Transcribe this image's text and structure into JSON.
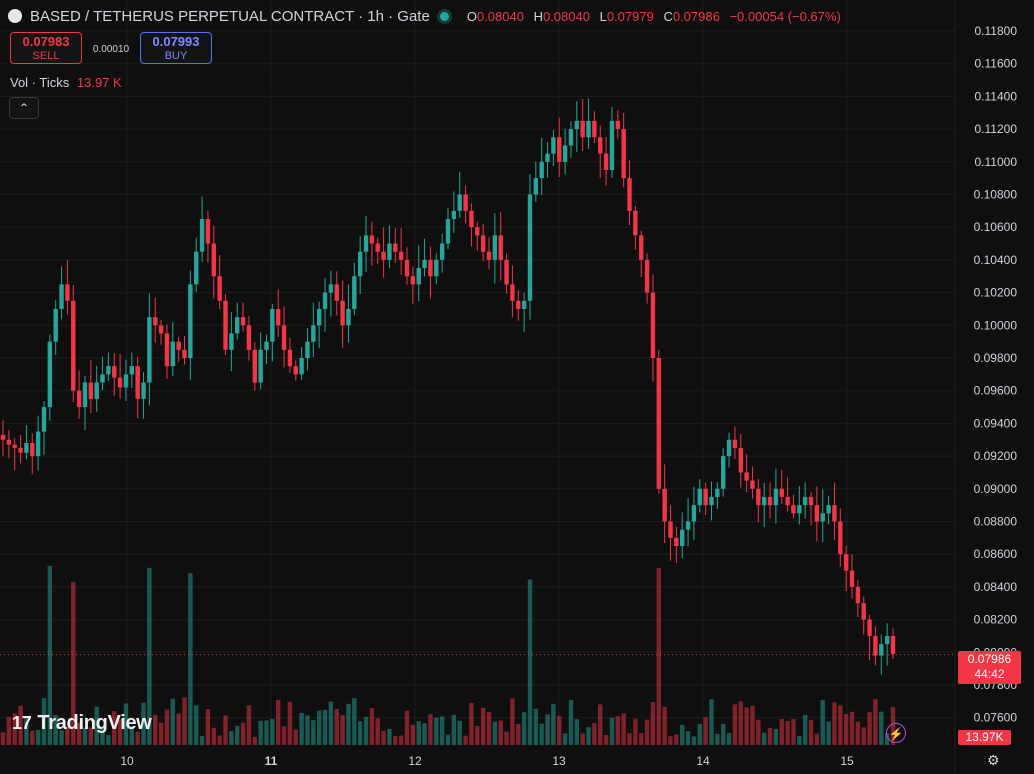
{
  "header": {
    "symbol": "BASED / TETHERUS PERPETUAL CONTRACT · 1h · Gate",
    "o_label": "O",
    "o": "0.08040",
    "h_label": "H",
    "h": "0.08040",
    "l_label": "L",
    "l": "0.07979",
    "c_label": "C",
    "c": "0.07986",
    "change": "−0.00054 (−0.67%)"
  },
  "trade": {
    "sell_price": "0.07983",
    "sell_label": "SELL",
    "spread": "0.00010",
    "buy_price": "0.07993",
    "buy_label": "BUY"
  },
  "volume_legend": {
    "label": "Vol · Ticks",
    "value": "13.97 K"
  },
  "collapse_glyph": "⌃",
  "branding": {
    "name": "TradingView",
    "mark": "17"
  },
  "last_price": {
    "price": "0.07986",
    "countdown": "44:42"
  },
  "volume_tag": "13.97K",
  "colors": {
    "up": "#26a69a",
    "down": "#f23645",
    "background": "#0f0f0f",
    "grid": "#1c1c1c",
    "text": "#d1d4dc"
  },
  "icons": {
    "bolt": "lightning-icon",
    "settings": "gear-icon",
    "status": "live-status-dot"
  },
  "chart_data": {
    "type": "candlestick",
    "title": "BASED / TETHERUS PERPETUAL CONTRACT · 1h · Gate",
    "interval": "1h",
    "y_ticks": [
      "0.11800",
      "0.11600",
      "0.11400",
      "0.11200",
      "0.11000",
      "0.10800",
      "0.10600",
      "0.10400",
      "0.10200",
      "0.10000",
      "0.09800",
      "0.09600",
      "0.09400",
      "0.09200",
      "0.09000",
      "0.08800",
      "0.08600",
      "0.08400",
      "0.08200",
      "0.08000",
      "0.07800",
      "0.07600"
    ],
    "ylim": [
      0.0755,
      0.1185
    ],
    "x_tick_labels": [
      "10",
      "11",
      "12",
      "13",
      "14",
      "15"
    ],
    "grid": true,
    "closes": [
      0.093,
      0.0927,
      0.0925,
      0.0922,
      0.0928,
      0.092,
      0.0935,
      0.095,
      0.099,
      0.101,
      0.1025,
      0.1015,
      0.096,
      0.095,
      0.0965,
      0.0955,
      0.0965,
      0.097,
      0.0975,
      0.0968,
      0.0962,
      0.097,
      0.0975,
      0.0955,
      0.0965,
      0.1005,
      0.1,
      0.0995,
      0.0975,
      0.099,
      0.0985,
      0.098,
      0.1025,
      0.1045,
      0.1065,
      0.105,
      0.103,
      0.1015,
      0.0985,
      0.0995,
      0.1005,
      0.1,
      0.0985,
      0.0965,
      0.0985,
      0.099,
      0.101,
      0.1,
      0.0985,
      0.0975,
      0.097,
      0.098,
      0.099,
      0.1,
      0.101,
      0.102,
      0.1025,
      0.1015,
      0.1,
      0.101,
      0.103,
      0.1045,
      0.1055,
      0.105,
      0.1045,
      0.104,
      0.105,
      0.1045,
      0.104,
      0.103,
      0.1025,
      0.1035,
      0.104,
      0.103,
      0.104,
      0.105,
      0.1065,
      0.107,
      0.108,
      0.107,
      0.106,
      0.1055,
      0.1045,
      0.104,
      0.1055,
      0.104,
      0.1025,
      0.1015,
      0.101,
      0.1015,
      0.108,
      0.109,
      0.11,
      0.1105,
      0.1115,
      0.11,
      0.111,
      0.112,
      0.1125,
      0.1115,
      0.1125,
      0.1115,
      0.1105,
      0.1095,
      0.1125,
      0.112,
      0.109,
      0.107,
      0.1055,
      0.104,
      0.102,
      0.098,
      0.09,
      0.088,
      0.087,
      0.0865,
      0.0875,
      0.088,
      0.089,
      0.09,
      0.089,
      0.0895,
      0.09,
      0.092,
      0.093,
      0.0925,
      0.091,
      0.0905,
      0.09,
      0.089,
      0.0895,
      0.089,
      0.09,
      0.0895,
      0.089,
      0.0885,
      0.089,
      0.0895,
      0.089,
      0.088,
      0.0885,
      0.089,
      0.088,
      0.086,
      0.085,
      0.084,
      0.083,
      0.082,
      0.081,
      0.0798,
      0.0805,
      0.081,
      0.0799
    ],
    "volume_last": "13.97K"
  }
}
